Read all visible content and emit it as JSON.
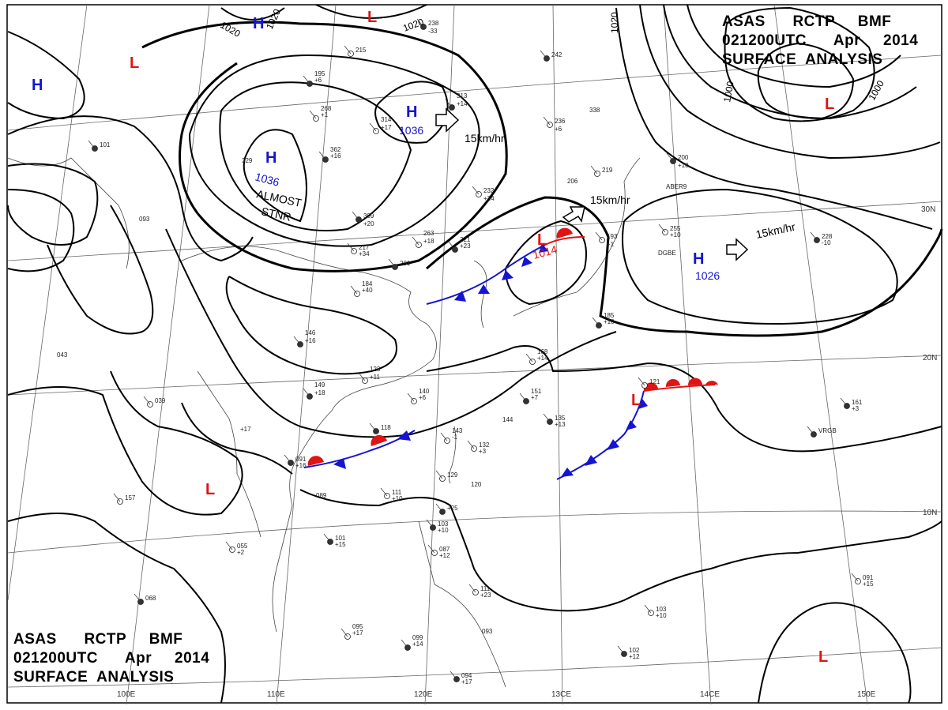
{
  "title_block": {
    "line1": "ASAS      RCTP     BMF",
    "line2": "021200UTC      Apr     2014",
    "line3": "SURFACE  ANALYSIS"
  },
  "colors": {
    "high": "#1414d2",
    "low": "#e01414",
    "warm_front": "#e01414",
    "cold_front": "#1414d2",
    "isobar": "#000000",
    "grid": "#555555"
  },
  "pressure_centers": [
    {
      "type": "H",
      "pressure": ""
    },
    {
      "type": "H",
      "pressure": ""
    },
    {
      "type": "H",
      "pressure": "1036"
    },
    {
      "type": "H",
      "pressure": "1036"
    },
    {
      "type": "H",
      "pressure": "1026"
    },
    {
      "type": "L",
      "pressure": ""
    },
    {
      "type": "L",
      "pressure": ""
    },
    {
      "type": "L",
      "pressure": ""
    },
    {
      "type": "L",
      "pressure": "1014"
    },
    {
      "type": "L",
      "pressure": ""
    },
    {
      "type": "L",
      "pressure": ""
    },
    {
      "type": "L",
      "pressure": ""
    }
  ],
  "isobar_labels": [
    "1020",
    "1020",
    "1020",
    "1020",
    "1000",
    "1000"
  ],
  "annotations": {
    "stationary_line1": "ALMOST",
    "stationary_line2": "STNR",
    "motion_1": "15km/hr",
    "motion_2": "15km/hr",
    "motion_3": "15km/hr"
  },
  "longitude_labels": [
    "110E",
    "120E",
    "13CE",
    "14CE",
    "150E",
    "100E"
  ],
  "latitude_labels": [
    "20N",
    "10N",
    "30N"
  ],
  "station_plots": [
    {
      "v": "238"
    },
    {
      "v": "-33"
    },
    {
      "v": "215"
    },
    {
      "v": "195"
    },
    {
      "v": "+6"
    },
    {
      "v": "268"
    },
    {
      "v": "+1"
    },
    {
      "v": "313"
    },
    {
      "v": "+14"
    },
    {
      "v": "314"
    },
    {
      "v": "+17"
    },
    {
      "v": "362"
    },
    {
      "v": "+16"
    },
    {
      "v": "329"
    },
    {
      "v": "232"
    },
    {
      "v": "+24"
    },
    {
      "v": "309"
    },
    {
      "v": "+20"
    },
    {
      "v": "236"
    },
    {
      "v": "+6"
    },
    {
      "v": "242"
    },
    {
      "v": "338"
    },
    {
      "v": "219"
    },
    {
      "v": "206"
    },
    {
      "v": "200"
    },
    {
      "v": "+10"
    },
    {
      "v": "255"
    },
    {
      "v": "+10"
    },
    {
      "v": "228"
    },
    {
      "v": "-10"
    },
    {
      "v": "193"
    },
    {
      "v": "+1"
    },
    {
      "v": "101"
    },
    {
      "v": "093"
    },
    {
      "v": "217"
    },
    {
      "v": "+34"
    },
    {
      "v": "201"
    },
    {
      "v": "263"
    },
    {
      "v": "+18"
    },
    {
      "v": "221"
    },
    {
      "v": "+23"
    },
    {
      "v": "184"
    },
    {
      "v": "+40"
    },
    {
      "v": "146"
    },
    {
      "v": "+16"
    },
    {
      "v": "123"
    },
    {
      "v": "+11"
    },
    {
      "v": "149"
    },
    {
      "v": "+18"
    },
    {
      "v": "140"
    },
    {
      "v": "+6"
    },
    {
      "v": "151"
    },
    {
      "v": "+7"
    },
    {
      "v": "168"
    },
    {
      "v": "+14"
    },
    {
      "v": "185"
    },
    {
      "v": "+10"
    },
    {
      "v": "043"
    },
    {
      "v": "039"
    },
    {
      "v": "+17"
    },
    {
      "v": "118"
    },
    {
      "v": "143"
    },
    {
      "v": "-1"
    },
    {
      "v": "144"
    },
    {
      "v": "135"
    },
    {
      "v": "+13"
    },
    {
      "v": "132"
    },
    {
      "v": "+3"
    },
    {
      "v": "091"
    },
    {
      "v": "+16"
    },
    {
      "v": "129"
    },
    {
      "v": "120"
    },
    {
      "v": "+25"
    },
    {
      "v": "089"
    },
    {
      "v": "111"
    },
    {
      "v": "+10"
    },
    {
      "v": "103"
    },
    {
      "v": "+10"
    },
    {
      "v": "087"
    },
    {
      "v": "+12"
    },
    {
      "v": "101"
    },
    {
      "v": "+15"
    },
    {
      "v": "055"
    },
    {
      "v": "+2"
    },
    {
      "v": "068"
    },
    {
      "v": "095"
    },
    {
      "v": "+17"
    },
    {
      "v": "099"
    },
    {
      "v": "+14"
    },
    {
      "v": "093"
    },
    {
      "v": "111"
    },
    {
      "v": "+23"
    },
    {
      "v": "094"
    },
    {
      "v": "+17"
    },
    {
      "v": "103"
    },
    {
      "v": "+10"
    },
    {
      "v": "102"
    },
    {
      "v": "+12"
    },
    {
      "v": "091"
    },
    {
      "v": "+15"
    },
    {
      "v": "161"
    },
    {
      "v": "+3"
    },
    {
      "v": "121"
    },
    {
      "v": "DGBE"
    },
    {
      "v": "VRGB"
    },
    {
      "v": "ABER9"
    },
    {
      "v": "157"
    }
  ]
}
